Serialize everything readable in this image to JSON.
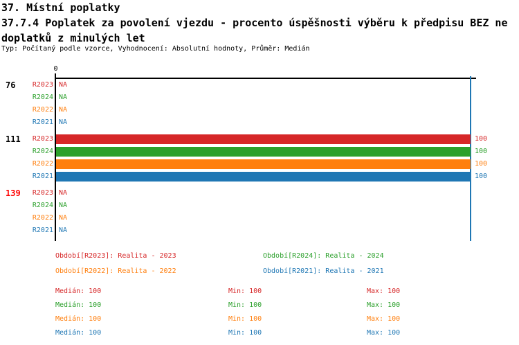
{
  "header": {
    "title": "37. Místní poplatky",
    "subtitle_line1": "37.7.4 Poplatek za povolení vjezdu - procento úspěšnosti výběru k předpisu BEZ ne",
    "subtitle_line2": "doplatků z minulých let",
    "type_line": "Typ: Počítaný podle vzorce, Vyhodnocení: Absolutní hodnoty, Průměr: Medián"
  },
  "colors": {
    "r2023": "#d62728",
    "r2024": "#2ca02c",
    "r2022": "#ff7f0e",
    "r2021": "#1f77b4",
    "axis": "#000000",
    "limit_line": "#1f77b4",
    "group_highlight": "#ff0000",
    "group_normal": "#000000"
  },
  "chart_data": {
    "type": "bar",
    "orientation": "horizontal",
    "axis_origin_label": "0",
    "xlim": [
      0,
      100
    ],
    "series_order": [
      "R2023",
      "R2024",
      "R2022",
      "R2021"
    ],
    "groups": [
      {
        "label": "76",
        "label_color": "#000000",
        "rows": [
          {
            "series": "R2023",
            "value": null,
            "display": "NA"
          },
          {
            "series": "R2024",
            "value": null,
            "display": "NA"
          },
          {
            "series": "R2022",
            "value": null,
            "display": "NA"
          },
          {
            "series": "R2021",
            "value": null,
            "display": "NA"
          }
        ]
      },
      {
        "label": "111",
        "label_color": "#000000",
        "rows": [
          {
            "series": "R2023",
            "value": 100,
            "display": "100"
          },
          {
            "series": "R2024",
            "value": 100,
            "display": "100"
          },
          {
            "series": "R2022",
            "value": 100,
            "display": "100"
          },
          {
            "series": "R2021",
            "value": 100,
            "display": "100"
          }
        ]
      },
      {
        "label": "139",
        "label_color": "#ff0000",
        "rows": [
          {
            "series": "R2023",
            "value": null,
            "display": "NA"
          },
          {
            "series": "R2024",
            "value": null,
            "display": "NA"
          },
          {
            "series": "R2022",
            "value": null,
            "display": "NA"
          },
          {
            "series": "R2021",
            "value": null,
            "display": "NA"
          }
        ]
      }
    ]
  },
  "legend": [
    {
      "series": "R2023",
      "label": "Období[R2023]: Realita - 2023",
      "color": "#d62728"
    },
    {
      "series": "R2024",
      "label": "Období[R2024]: Realita - 2024",
      "color": "#2ca02c"
    },
    {
      "series": "R2022",
      "label": "Období[R2022]: Realita - 2022",
      "color": "#ff7f0e"
    },
    {
      "series": "R2021",
      "label": "Období[R2021]: Realita - 2021",
      "color": "#1f77b4"
    }
  ],
  "stats": {
    "columns": [
      "Medián",
      "Min",
      "Max"
    ],
    "rows": [
      {
        "series": "R2023",
        "color": "#d62728",
        "median": "100",
        "min": "100",
        "max": "100"
      },
      {
        "series": "R2024",
        "color": "#2ca02c",
        "median": "100",
        "min": "100",
        "max": "100"
      },
      {
        "series": "R2022",
        "color": "#ff7f0e",
        "median": "100",
        "min": "100",
        "max": "100"
      },
      {
        "series": "R2021",
        "color": "#1f77b4",
        "median": "100",
        "min": "100",
        "max": "100"
      }
    ]
  }
}
